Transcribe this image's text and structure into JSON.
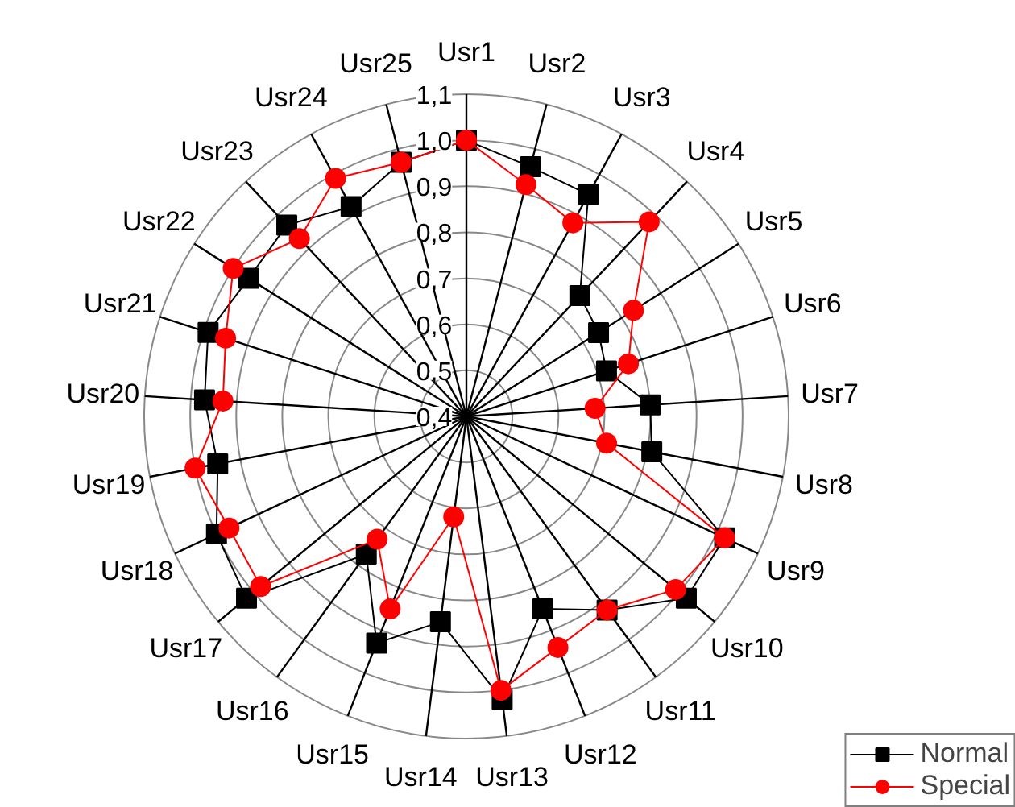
{
  "chart_data": {
    "type": "radar",
    "categories": [
      "Usr1",
      "Usr2",
      "Usr3",
      "Usr4",
      "Usr5",
      "Usr6",
      "Usr7",
      "Usr8",
      "Usr9",
      "Usr10",
      "Usr11",
      "Usr12",
      "Usr13",
      "Usr14",
      "Usr15",
      "Usr16",
      "Usr17",
      "Usr18",
      "Usr19",
      "Usr20",
      "Usr21",
      "Usr22",
      "Usr23",
      "Usr24",
      "Usr25"
    ],
    "series": [
      {
        "name": "Normal",
        "color": "#000000",
        "marker": "square",
        "values": [
          1.0,
          0.96,
          0.95,
          0.76,
          0.74,
          0.72,
          0.8,
          0.81,
          1.02,
          1.02,
          0.92,
          0.85,
          1.02,
          0.85,
          0.93,
          0.77,
          1.02,
          1.0,
          0.95,
          0.97,
          0.99,
          0.96,
          0.97,
          0.92,
          0.97
        ]
      },
      {
        "name": "Special",
        "color": "#ff0000",
        "marker": "circle",
        "values": [
          1.0,
          0.92,
          0.88,
          0.98,
          0.83,
          0.77,
          0.68,
          0.71,
          1.02,
          0.99,
          0.92,
          0.94,
          1.0,
          0.62,
          0.85,
          0.73,
          0.98,
          0.97,
          1.0,
          0.93,
          0.95,
          1.0,
          0.93,
          0.99,
          0.97
        ]
      }
    ],
    "ylim": [
      0.4,
      1.1
    ],
    "yticks": [
      {
        "value": 0.4,
        "label": "0,4"
      },
      {
        "value": 0.5,
        "label": "0,5"
      },
      {
        "value": 0.6,
        "label": "0,6"
      },
      {
        "value": 0.7,
        "label": "0,7"
      },
      {
        "value": 0.8,
        "label": "0,8"
      },
      {
        "value": 0.9,
        "label": "0,9"
      },
      {
        "value": 1.0,
        "label": "1,0"
      },
      {
        "value": 1.1,
        "label": "1,1"
      }
    ],
    "grid": true,
    "legend": "bottom right"
  }
}
